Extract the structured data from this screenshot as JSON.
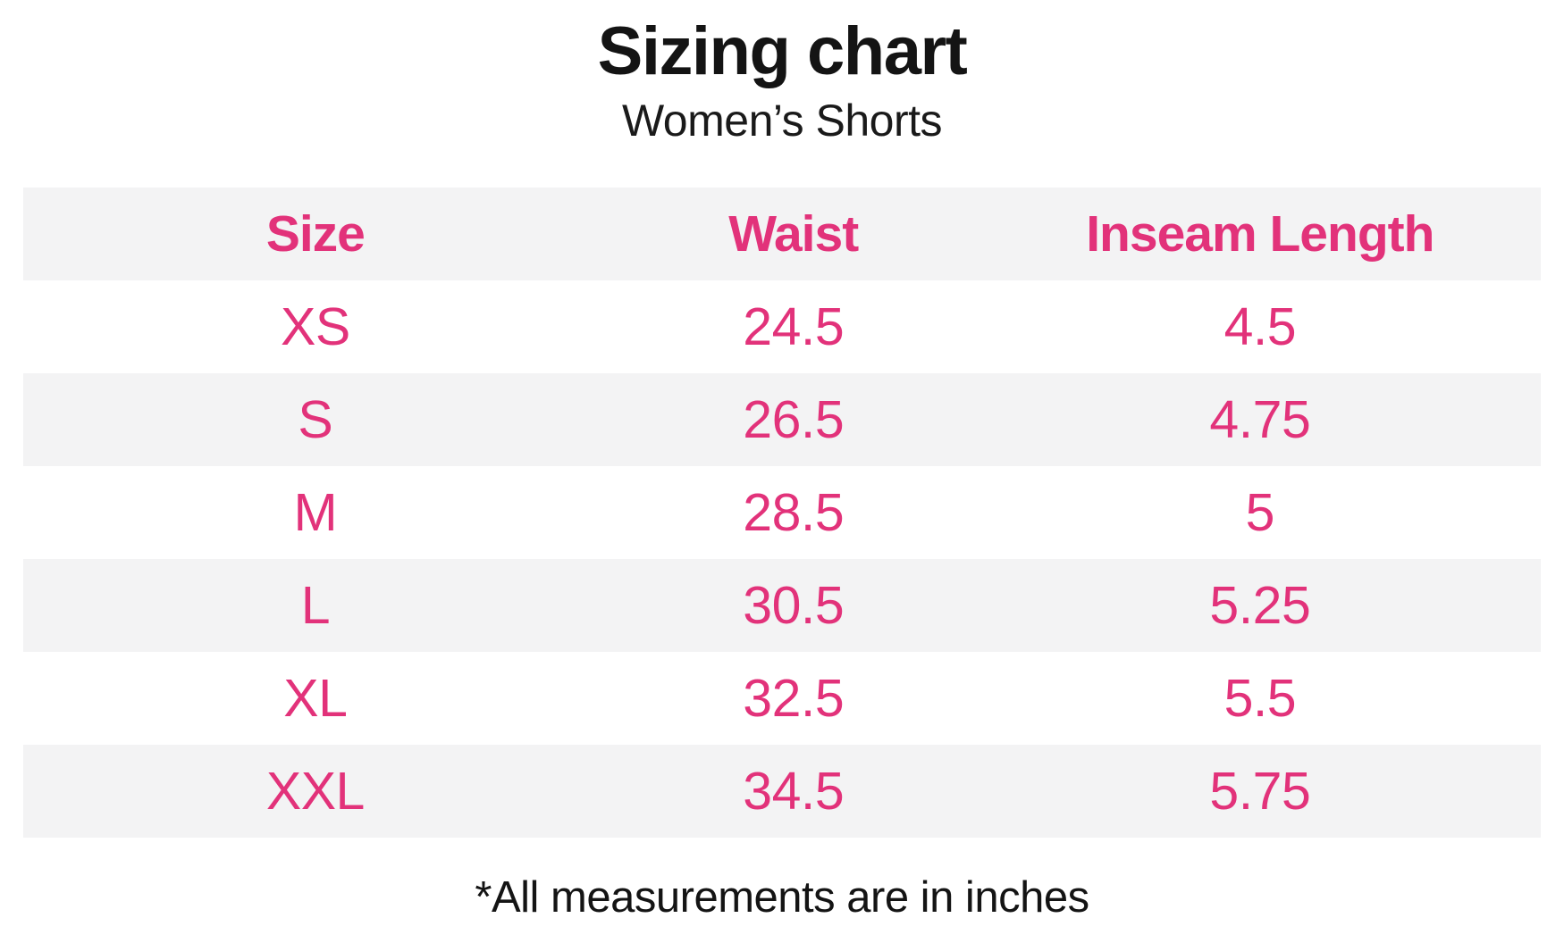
{
  "page": {
    "title": "Sizing chart",
    "subtitle": "Women’s Shorts",
    "footnote": "*All measurements are in inches"
  },
  "colors": {
    "accent_pink": "#e2327a",
    "row_stripe_gray": "#f3f3f4",
    "text_black": "#141414",
    "background": "#ffffff"
  },
  "chart_data": {
    "type": "table",
    "title": "Sizing chart",
    "subtitle": "Women’s Shorts",
    "columns": [
      "Size",
      "Waist",
      "Inseam Length"
    ],
    "rows": [
      {
        "size": "XS",
        "waist": "24.5",
        "inseam": "4.5"
      },
      {
        "size": "S",
        "waist": "26.5",
        "inseam": "4.75"
      },
      {
        "size": "M",
        "waist": "28.5",
        "inseam": "5"
      },
      {
        "size": "L",
        "waist": "30.5",
        "inseam": "5.25"
      },
      {
        "size": "XL",
        "waist": "32.5",
        "inseam": "5.5"
      },
      {
        "size": "XXL",
        "waist": "34.5",
        "inseam": "5.75"
      }
    ],
    "footnote": "*All measurements are in inches",
    "units": "inches",
    "layout_hints": {
      "striped_rows": true,
      "stripe_on": [
        "header",
        "S",
        "L",
        "XXL"
      ],
      "header_text_color": "#e2327a",
      "value_text_color": "#e2327a"
    }
  }
}
